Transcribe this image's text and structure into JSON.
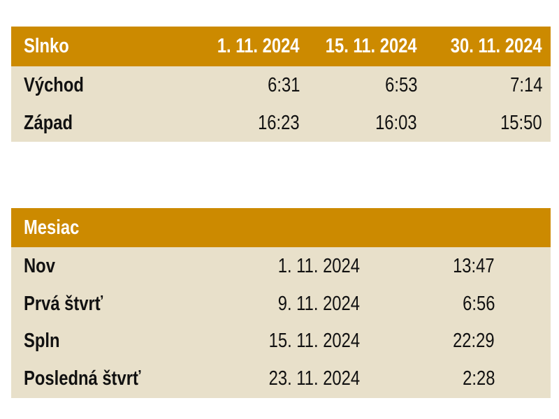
{
  "sun_table": {
    "header": [
      "Slnko",
      "1. 11. 2024",
      "15. 11. 2024",
      "30. 11. 2024"
    ],
    "rows": [
      [
        "Východ",
        "6:31",
        "6:53",
        "7:14"
      ],
      [
        "Západ",
        "16:23",
        "16:03",
        "15:50"
      ]
    ]
  },
  "moon_table": {
    "header": "Mesiac",
    "rows": [
      [
        "Nov",
        "1. 11. 2024",
        "13:47"
      ],
      [
        "Prvá štvrť",
        "9. 11. 2024",
        "6:56"
      ],
      [
        "Spln",
        "15. 11. 2024",
        "22:29"
      ],
      [
        "Posledná štvrť",
        "23. 11. 2024",
        "2:28"
      ]
    ]
  }
}
